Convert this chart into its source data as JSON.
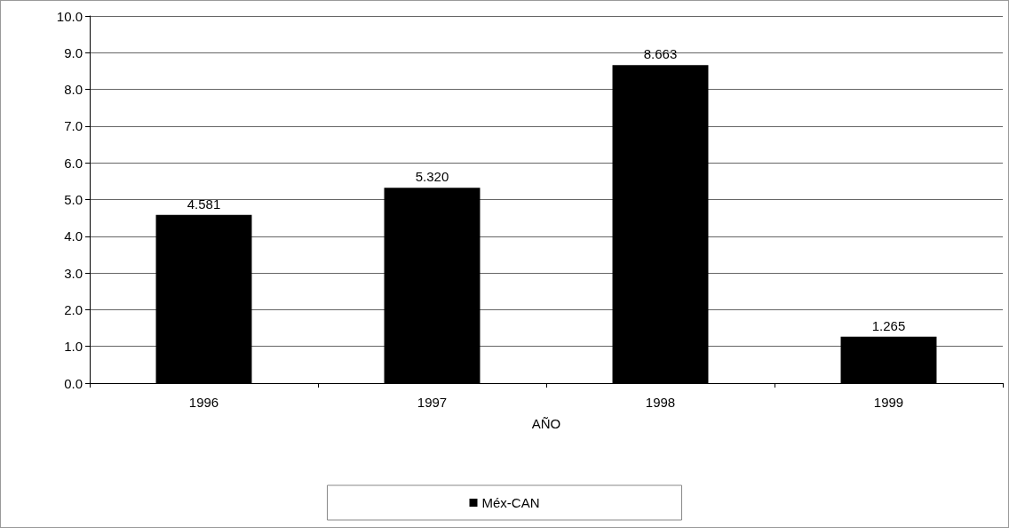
{
  "chart_data": {
    "type": "bar",
    "xlabel": "AÑO",
    "categories": [
      "1996",
      "1997",
      "1998",
      "1999"
    ],
    "series": [
      {
        "name": "Méx-CAN",
        "color": "#000000",
        "values": [
          4.581,
          5.32,
          8.663,
          1.265
        ],
        "value_labels": [
          "4.581",
          "5.320",
          "8.663",
          "1.265"
        ]
      }
    ],
    "ylim": [
      0,
      10
    ],
    "yticks": [
      {
        "value": 0,
        "label": "0.0"
      },
      {
        "value": 1,
        "label": "1.0"
      },
      {
        "value": 2,
        "label": "2.0"
      },
      {
        "value": 3,
        "label": "3.0"
      },
      {
        "value": 4,
        "label": "4.0"
      },
      {
        "value": 5,
        "label": "5.0"
      },
      {
        "value": 6,
        "label": "6.0"
      },
      {
        "value": 7,
        "label": "7.0"
      },
      {
        "value": 8,
        "label": "8.0"
      },
      {
        "value": 9,
        "label": "9.0"
      },
      {
        "value": 10,
        "label": "10.0"
      }
    ],
    "grid": "y",
    "legend": "bottom"
  }
}
